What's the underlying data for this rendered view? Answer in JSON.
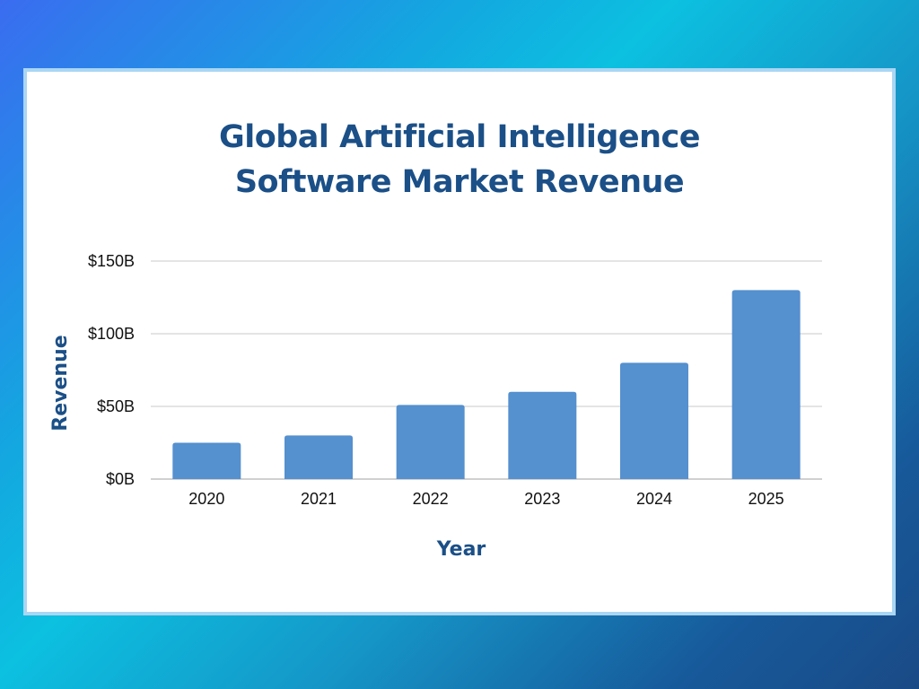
{
  "colors": {
    "bar": "#5590cf",
    "title": "#1b4f87",
    "grid": "#c8c8c8",
    "card_border": "#a9d6f3"
  },
  "chart_data": {
    "type": "bar",
    "title_lines": [
      "Global Artificial Intelligence",
      "Software Market Revenue"
    ],
    "xlabel": "Year",
    "ylabel": "Revenue",
    "categories": [
      "2020",
      "2021",
      "2022",
      "2023",
      "2024",
      "2025"
    ],
    "values": [
      25,
      30,
      51,
      60,
      80,
      130
    ],
    "unit": "billion USD",
    "ylim": [
      0,
      150
    ],
    "y_ticks": [
      0,
      50,
      100,
      150
    ],
    "y_tick_labels": [
      "$0B",
      "$50B",
      "$100B",
      "$150B"
    ],
    "grid": true,
    "legend": "none"
  }
}
